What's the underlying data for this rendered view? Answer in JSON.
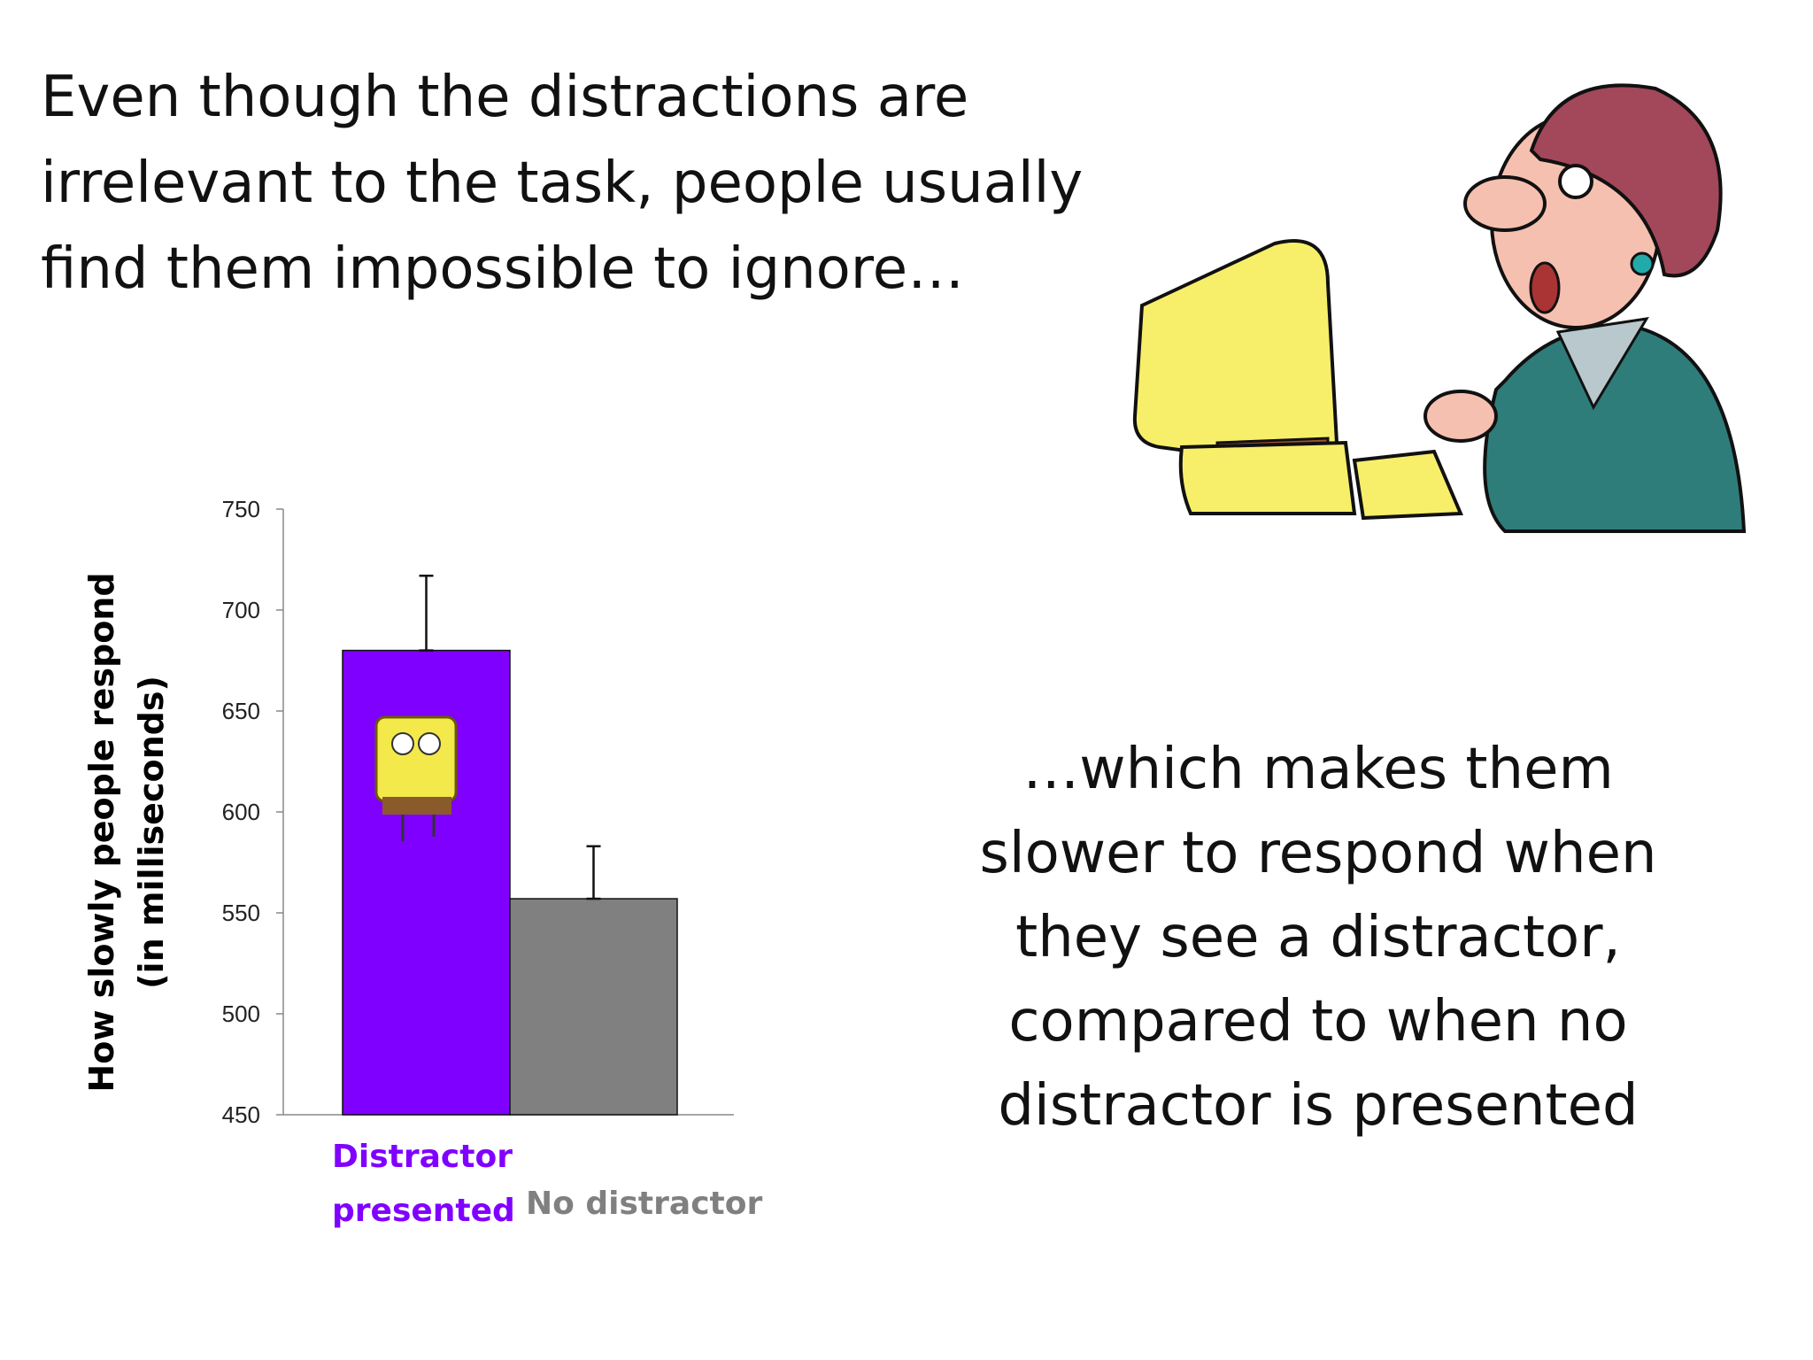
{
  "heading": [
    "Even though the distractions are",
    "irrelevant to the task, people usually",
    "find them impossible to  ignore…"
  ],
  "chart_data": {
    "type": "bar",
    "ylabel": [
      "How slowly people respond",
      "(in milliseconds)"
    ],
    "categories": [
      "Distractor presented",
      "No distractor"
    ],
    "values": [
      680,
      557
    ],
    "errors": [
      37,
      26
    ],
    "colors": [
      "#8000ff",
      "#808080"
    ],
    "ylim": [
      450,
      750
    ],
    "yticks": [
      450,
      500,
      550,
      600,
      650,
      700,
      750
    ],
    "grid": false
  },
  "caption": [
    "…which makes them",
    "slower to respond when",
    "they see a distractor,",
    "compared to when no",
    "distractor is presented"
  ]
}
